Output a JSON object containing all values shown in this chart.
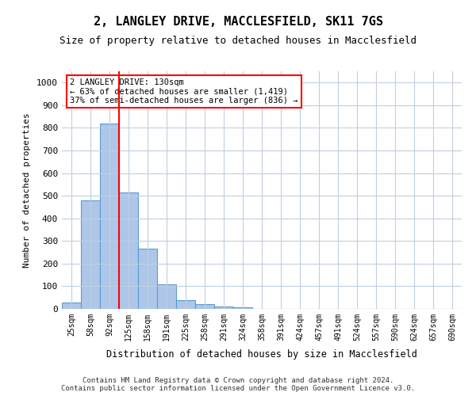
{
  "title_line1": "2, LANGLEY DRIVE, MACCLESFIELD, SK11 7GS",
  "title_line2": "Size of property relative to detached houses in Macclesfield",
  "xlabel": "Distribution of detached houses by size in Macclesfield",
  "ylabel": "Number of detached properties",
  "bar_values": [
    28,
    480,
    820,
    515,
    265,
    110,
    38,
    20,
    12,
    7,
    0,
    0,
    0,
    0,
    0,
    0,
    0,
    0,
    0,
    0,
    0
  ],
  "bin_labels": [
    "25sqm",
    "58sqm",
    "92sqm",
    "125sqm",
    "158sqm",
    "191sqm",
    "225sqm",
    "258sqm",
    "291sqm",
    "324sqm",
    "358sqm",
    "391sqm",
    "424sqm",
    "457sqm",
    "491sqm",
    "524sqm",
    "557sqm",
    "590sqm",
    "624sqm",
    "657sqm",
    "690sqm"
  ],
  "bar_color": "#aec6e8",
  "bar_edge_color": "#5b9bd5",
  "property_bin_index": 3,
  "annotation_text": "2 LANGLEY DRIVE: 130sqm\n← 63% of detached houses are smaller (1,419)\n37% of semi-detached houses are larger (836) →",
  "annotation_box_color": "white",
  "annotation_box_edge_color": "red",
  "vline_color": "red",
  "ylim": [
    0,
    1050
  ],
  "yticks": [
    0,
    100,
    200,
    300,
    400,
    500,
    600,
    700,
    800,
    900,
    1000
  ],
  "footer_line1": "Contains HM Land Registry data © Crown copyright and database right 2024.",
  "footer_line2": "Contains public sector information licensed under the Open Government Licence v3.0.",
  "plot_bg_color": "white",
  "grid_color": "#c0cfe0"
}
